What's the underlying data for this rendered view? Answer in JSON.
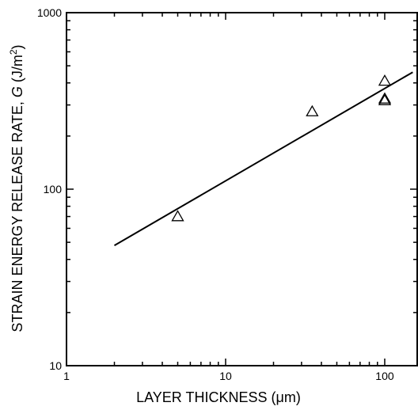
{
  "chart_data": {
    "type": "scatter",
    "xlabel_main": "LAYER THICKNESS (",
    "xlabel_unit": "μm",
    "xlabel_close": ")",
    "ylabel_main": "STRAIN ENERGY RELEASE RATE, ",
    "ylabel_symbol": "G",
    "ylabel_unit": " (J/m",
    "ylabel_exp": "2",
    "ylabel_close": ")",
    "x_scale": "log",
    "y_scale": "log",
    "xlim": [
      1,
      160
    ],
    "ylim": [
      10,
      1000
    ],
    "x_ticks": [
      {
        "value": 1,
        "label": "1"
      },
      {
        "value": 10,
        "label": "10"
      },
      {
        "value": 100,
        "label": "100"
      }
    ],
    "y_ticks": [
      {
        "value": 10,
        "label": "10"
      },
      {
        "value": 100,
        "label": "100"
      },
      {
        "value": 1000,
        "label": "1000"
      }
    ],
    "grid": false,
    "marker": "open-triangle",
    "points": [
      {
        "x": 5,
        "y": 70
      },
      {
        "x": 35,
        "y": 275
      },
      {
        "x": 100,
        "y": 410
      },
      {
        "x": 100,
        "y": 325
      },
      {
        "x": 100,
        "y": 318
      }
    ],
    "fit_line": {
      "x": [
        2,
        150
      ],
      "y": [
        48,
        460
      ]
    }
  }
}
